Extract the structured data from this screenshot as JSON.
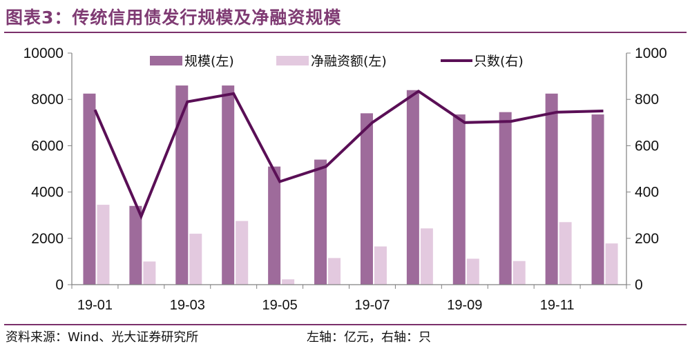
{
  "title": "图表3：传统信用债发行规模及净融资规模",
  "source": "资料来源：Wind、光大证券研究所",
  "unit_note": "左轴：亿元，右轴：只",
  "colors": {
    "bar_scale": "#9e6b9b",
    "bar_net": "#e3c9df",
    "line_count": "#5a0f56",
    "title": "#7f3b73"
  },
  "chart_data": {
    "type": "bar",
    "categories": [
      "19-01",
      "19-02",
      "19-03",
      "19-04",
      "19-05",
      "19-06",
      "19-07",
      "19-08",
      "19-09",
      "19-10",
      "19-11",
      "19-12"
    ],
    "x_tick_labels": [
      "19-01",
      "",
      "19-03",
      "",
      "19-05",
      "",
      "19-07",
      "",
      "19-09",
      "",
      "19-11",
      ""
    ],
    "series": [
      {
        "name": "规模(左)",
        "type": "bar",
        "axis": "left",
        "values": [
          8250,
          3400,
          8600,
          8600,
          5100,
          5400,
          7400,
          8400,
          7350,
          7450,
          8250,
          7350
        ]
      },
      {
        "name": "净融资额(左)",
        "type": "bar",
        "axis": "left",
        "values": [
          3450,
          1000,
          2200,
          2750,
          230,
          1150,
          1650,
          2430,
          1120,
          1020,
          2700,
          1780
        ]
      },
      {
        "name": "只数(右)",
        "type": "line",
        "axis": "right",
        "values": [
          755,
          295,
          790,
          825,
          445,
          510,
          700,
          835,
          700,
          705,
          745,
          750
        ]
      }
    ],
    "y_left": {
      "range": [
        0,
        10000
      ],
      "ticks": [
        "0",
        "2000",
        "4000",
        "6000",
        "8000",
        "10000"
      ]
    },
    "y_right": {
      "range": [
        0,
        1000
      ],
      "ticks": [
        "0",
        "200",
        "400",
        "600",
        "800",
        "1000"
      ]
    },
    "legend_position": "top",
    "grid": false
  }
}
